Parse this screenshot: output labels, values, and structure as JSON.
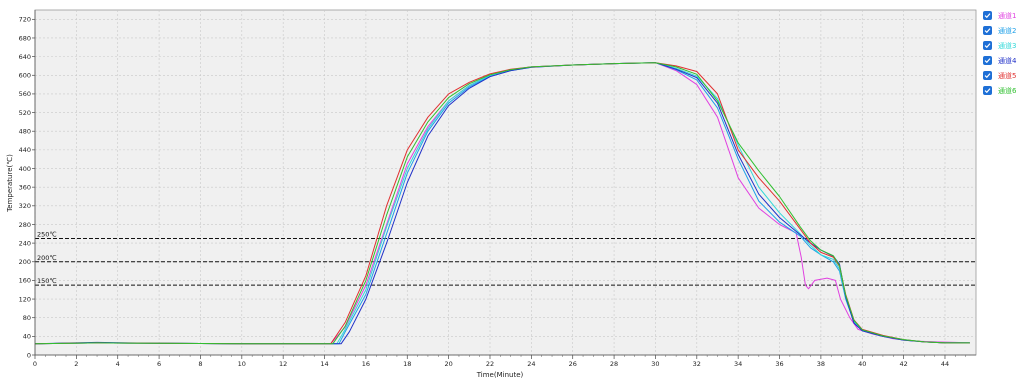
{
  "chart_data": {
    "type": "line",
    "xlabel": "Time(Minute)",
    "ylabel": "Temperature(℃)",
    "xlim": [
      0,
      45.5
    ],
    "ylim": [
      0,
      740
    ],
    "xticks": [
      0,
      2,
      4,
      6,
      8,
      10,
      12,
      14,
      16,
      18,
      20,
      22,
      24,
      26,
      28,
      30,
      32,
      34,
      36,
      38,
      40,
      42,
      44
    ],
    "yticks": [
      0,
      40,
      80,
      120,
      160,
      200,
      240,
      280,
      320,
      360,
      400,
      440,
      480,
      520,
      560,
      600,
      640,
      680,
      720
    ],
    "grid": true,
    "legend_position": "right",
    "reference_lines": [
      {
        "value": 250,
        "label": "250℃"
      },
      {
        "value": 200,
        "label": "200℃"
      },
      {
        "value": 150,
        "label": "150℃"
      }
    ],
    "series": [
      {
        "name": "通道1",
        "color": "#e040e0",
        "x": [
          0,
          3,
          6,
          10,
          14.3,
          15,
          16,
          17,
          18,
          19,
          20,
          21,
          22,
          23,
          24,
          26,
          28,
          30,
          31,
          32,
          33,
          34,
          35,
          36,
          36.8,
          37.05,
          37.25,
          37.4,
          37.7,
          38.3,
          38.7,
          38.95,
          39.4,
          39.8,
          40.5,
          41.5,
          42.5,
          43.5,
          44.5,
          45.2
        ],
        "y": [
          24,
          26,
          25,
          24,
          24,
          60,
          150,
          280,
          410,
          490,
          545,
          578,
          600,
          612,
          618,
          622,
          625,
          627,
          610,
          580,
          510,
          380,
          315,
          280,
          262,
          210,
          150,
          142,
          160,
          165,
          160,
          120,
          80,
          55,
          45,
          35,
          30,
          28,
          27,
          26
        ]
      },
      {
        "name": "通道2",
        "color": "#1ea0e8",
        "x": [
          0,
          3,
          6,
          10,
          14.7,
          15,
          16,
          17,
          18,
          19,
          20,
          21,
          22,
          23,
          24,
          26,
          28,
          30,
          31,
          32,
          33,
          34,
          35,
          36,
          37,
          37.5,
          38,
          38.6,
          38.9,
          39.2,
          39.6,
          40,
          41,
          42,
          43,
          44,
          45.2
        ],
        "y": [
          24,
          26,
          25,
          24,
          24,
          50,
          130,
          260,
          390,
          480,
          540,
          575,
          598,
          610,
          617,
          622,
          625,
          627,
          612,
          590,
          530,
          420,
          330,
          285,
          255,
          230,
          215,
          200,
          180,
          120,
          70,
          52,
          40,
          32,
          28,
          26,
          26
        ]
      },
      {
        "name": "通道3",
        "color": "#30d8d8",
        "x": [
          0,
          3,
          6,
          10,
          14.6,
          15,
          16,
          17,
          18,
          19,
          20,
          21,
          22,
          23,
          24,
          26,
          28,
          30,
          31,
          32,
          33,
          34,
          35,
          36,
          37,
          37.5,
          38,
          38.6,
          38.9,
          39.2,
          39.6,
          40,
          41,
          42,
          43,
          44,
          45.2
        ],
        "y": [
          24,
          26,
          25,
          24,
          24,
          55,
          140,
          275,
          400,
          485,
          545,
          578,
          600,
          612,
          618,
          622,
          625,
          627,
          615,
          598,
          550,
          450,
          360,
          305,
          260,
          235,
          215,
          205,
          185,
          125,
          72,
          53,
          41,
          33,
          28,
          26,
          26
        ]
      },
      {
        "name": "通道4",
        "color": "#2030c8",
        "x": [
          0,
          3,
          6,
          10,
          14.8,
          15.2,
          16,
          17,
          18,
          19,
          20,
          21,
          22,
          23,
          24,
          26,
          28,
          30,
          31,
          32,
          33,
          34,
          35,
          36,
          37,
          37.5,
          38,
          38.6,
          38.9,
          39.2,
          39.6,
          40,
          41,
          42,
          43,
          44,
          45.2
        ],
        "y": [
          24,
          27,
          25,
          24,
          24,
          50,
          120,
          240,
          370,
          470,
          535,
          572,
          597,
          610,
          617,
          622,
          625,
          627,
          613,
          595,
          540,
          430,
          345,
          295,
          258,
          240,
          225,
          212,
          195,
          125,
          68,
          52,
          40,
          32,
          28,
          26,
          26
        ]
      },
      {
        "name": "通道5",
        "color": "#e03030",
        "x": [
          0,
          3,
          6,
          10,
          14.3,
          15,
          16,
          17,
          18,
          19,
          20,
          21,
          22,
          23,
          24,
          26,
          28,
          30,
          31,
          32,
          33,
          34,
          35,
          36,
          37,
          37.5,
          38,
          38.6,
          38.9,
          39.2,
          39.6,
          40,
          41,
          42,
          43,
          44,
          45.2
        ],
        "y": [
          24,
          26,
          25,
          24,
          24,
          70,
          170,
          320,
          440,
          510,
          560,
          585,
          603,
          613,
          618,
          622,
          625,
          627,
          620,
          608,
          560,
          440,
          380,
          330,
          270,
          240,
          220,
          210,
          190,
          130,
          75,
          55,
          42,
          33,
          28,
          26,
          26
        ]
      },
      {
        "name": "通道6",
        "color": "#30c030",
        "x": [
          0,
          3,
          6,
          10,
          14.4,
          15,
          16,
          17,
          18,
          19,
          20,
          21,
          22,
          23,
          24,
          26,
          28,
          30,
          31,
          32,
          33,
          34,
          35,
          36,
          37,
          37.5,
          38,
          38.6,
          38.9,
          39.2,
          39.6,
          40,
          41,
          42,
          43,
          44,
          45.2
        ],
        "y": [
          24,
          26,
          25,
          24,
          24,
          62,
          160,
          300,
          425,
          500,
          552,
          582,
          601,
          612,
          618,
          622,
          625,
          627,
          618,
          602,
          545,
          455,
          395,
          340,
          275,
          245,
          225,
          213,
          192,
          128,
          74,
          54,
          41,
          33,
          28,
          26,
          26
        ]
      }
    ]
  }
}
